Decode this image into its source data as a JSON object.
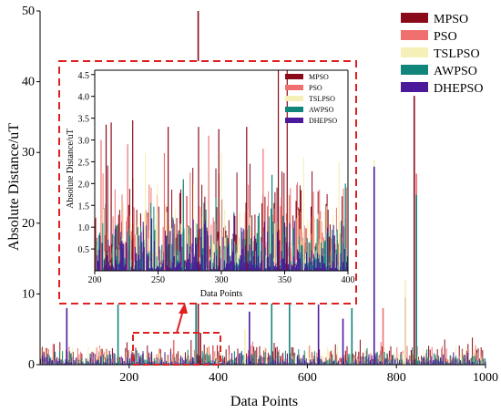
{
  "chart_data": [
    {
      "type": "bar",
      "xlabel": "Data Points",
      "ylabel": "Absolute Distance/uT",
      "xlim": [
        0,
        1000
      ],
      "ylim": [
        0,
        50
      ],
      "x_ticks": [
        200,
        400,
        600,
        800,
        1000
      ],
      "y_ticks": [
        0,
        10,
        20,
        30,
        40,
        50
      ],
      "legend_position": "top-right",
      "series": [
        {
          "name": "MPSO",
          "color": "#8b0a1a",
          "peaks": [
            [
              355,
              50
            ],
            [
              840,
              38
            ],
            [
              820,
              9.5
            ],
            [
              360,
              4.5
            ]
          ]
        },
        {
          "name": "PSO",
          "color": "#f07070",
          "peaks": [
            [
              845,
              27
            ],
            [
              770,
              8
            ],
            [
              700,
              6
            ],
            [
              300,
              3.5
            ]
          ]
        },
        {
          "name": "TSLPSO",
          "color": "#f5f0b8",
          "peaks": [
            [
              750,
              29
            ],
            [
              820,
              12
            ],
            [
              460,
              5
            ]
          ]
        },
        {
          "name": "AWPSO",
          "color": "#10857a",
          "peaks": [
            [
              845,
              24
            ],
            [
              175,
              8.5
            ],
            [
              350,
              8.5
            ],
            [
              520,
              9
            ],
            [
              560,
              8.5
            ],
            [
              700,
              8
            ]
          ]
        },
        {
          "name": "DHEPSO",
          "color": "#4b1a9a",
          "peaks": [
            [
              750,
              28
            ],
            [
              625,
              8.5
            ],
            [
              470,
              7.5
            ],
            [
              680,
              6.5
            ],
            [
              60,
              8
            ]
          ]
        }
      ]
    },
    {
      "type": "bar",
      "xlabel": "Data Points",
      "ylabel": "Absolute Distance/uT",
      "xlim": [
        200,
        400
      ],
      "ylim": [
        0,
        4.6
      ],
      "x_ticks": [
        200,
        250,
        300,
        350,
        400
      ],
      "y_ticks": [
        0.5,
        1.0,
        1.5,
        2.0,
        2.5,
        3.0,
        3.5,
        4.0,
        4.5
      ],
      "legend_position": "top-right",
      "series": [
        {
          "name": "MPSO",
          "color": "#8b0a1a",
          "peaks": [
            [
              209,
              3.35
            ],
            [
              213,
              3.4
            ],
            [
              230,
              3.45
            ],
            [
              258,
              3.3
            ],
            [
              282,
              3.3
            ],
            [
              298,
              3.25
            ],
            [
              320,
              3.3
            ],
            [
              345,
              4.6
            ],
            [
              352,
              4.6
            ]
          ]
        },
        {
          "name": "PSO",
          "color": "#f07070",
          "peaks": [
            [
              205,
              3.0
            ],
            [
              226,
              2.9
            ],
            [
              255,
              2.7
            ],
            [
              290,
              3.1
            ],
            [
              333,
              2.8
            ]
          ]
        },
        {
          "name": "TSLPSO",
          "color": "#f5f0b8",
          "peaks": [
            [
              240,
              2.7
            ],
            [
              300,
              2.7
            ],
            [
              365,
              2.6
            ],
            [
              393,
              2.5
            ]
          ]
        },
        {
          "name": "AWPSO",
          "color": "#10857a",
          "peaks": [
            [
              270,
              2.1
            ],
            [
              340,
              2.2
            ],
            [
              398,
              2.0
            ]
          ]
        },
        {
          "name": "DHEPSO",
          "color": "#4b1a9a",
          "peaks": [
            [
              245,
              1.2
            ],
            [
              310,
              1.3
            ],
            [
              350,
              1.1
            ]
          ]
        }
      ]
    }
  ]
}
